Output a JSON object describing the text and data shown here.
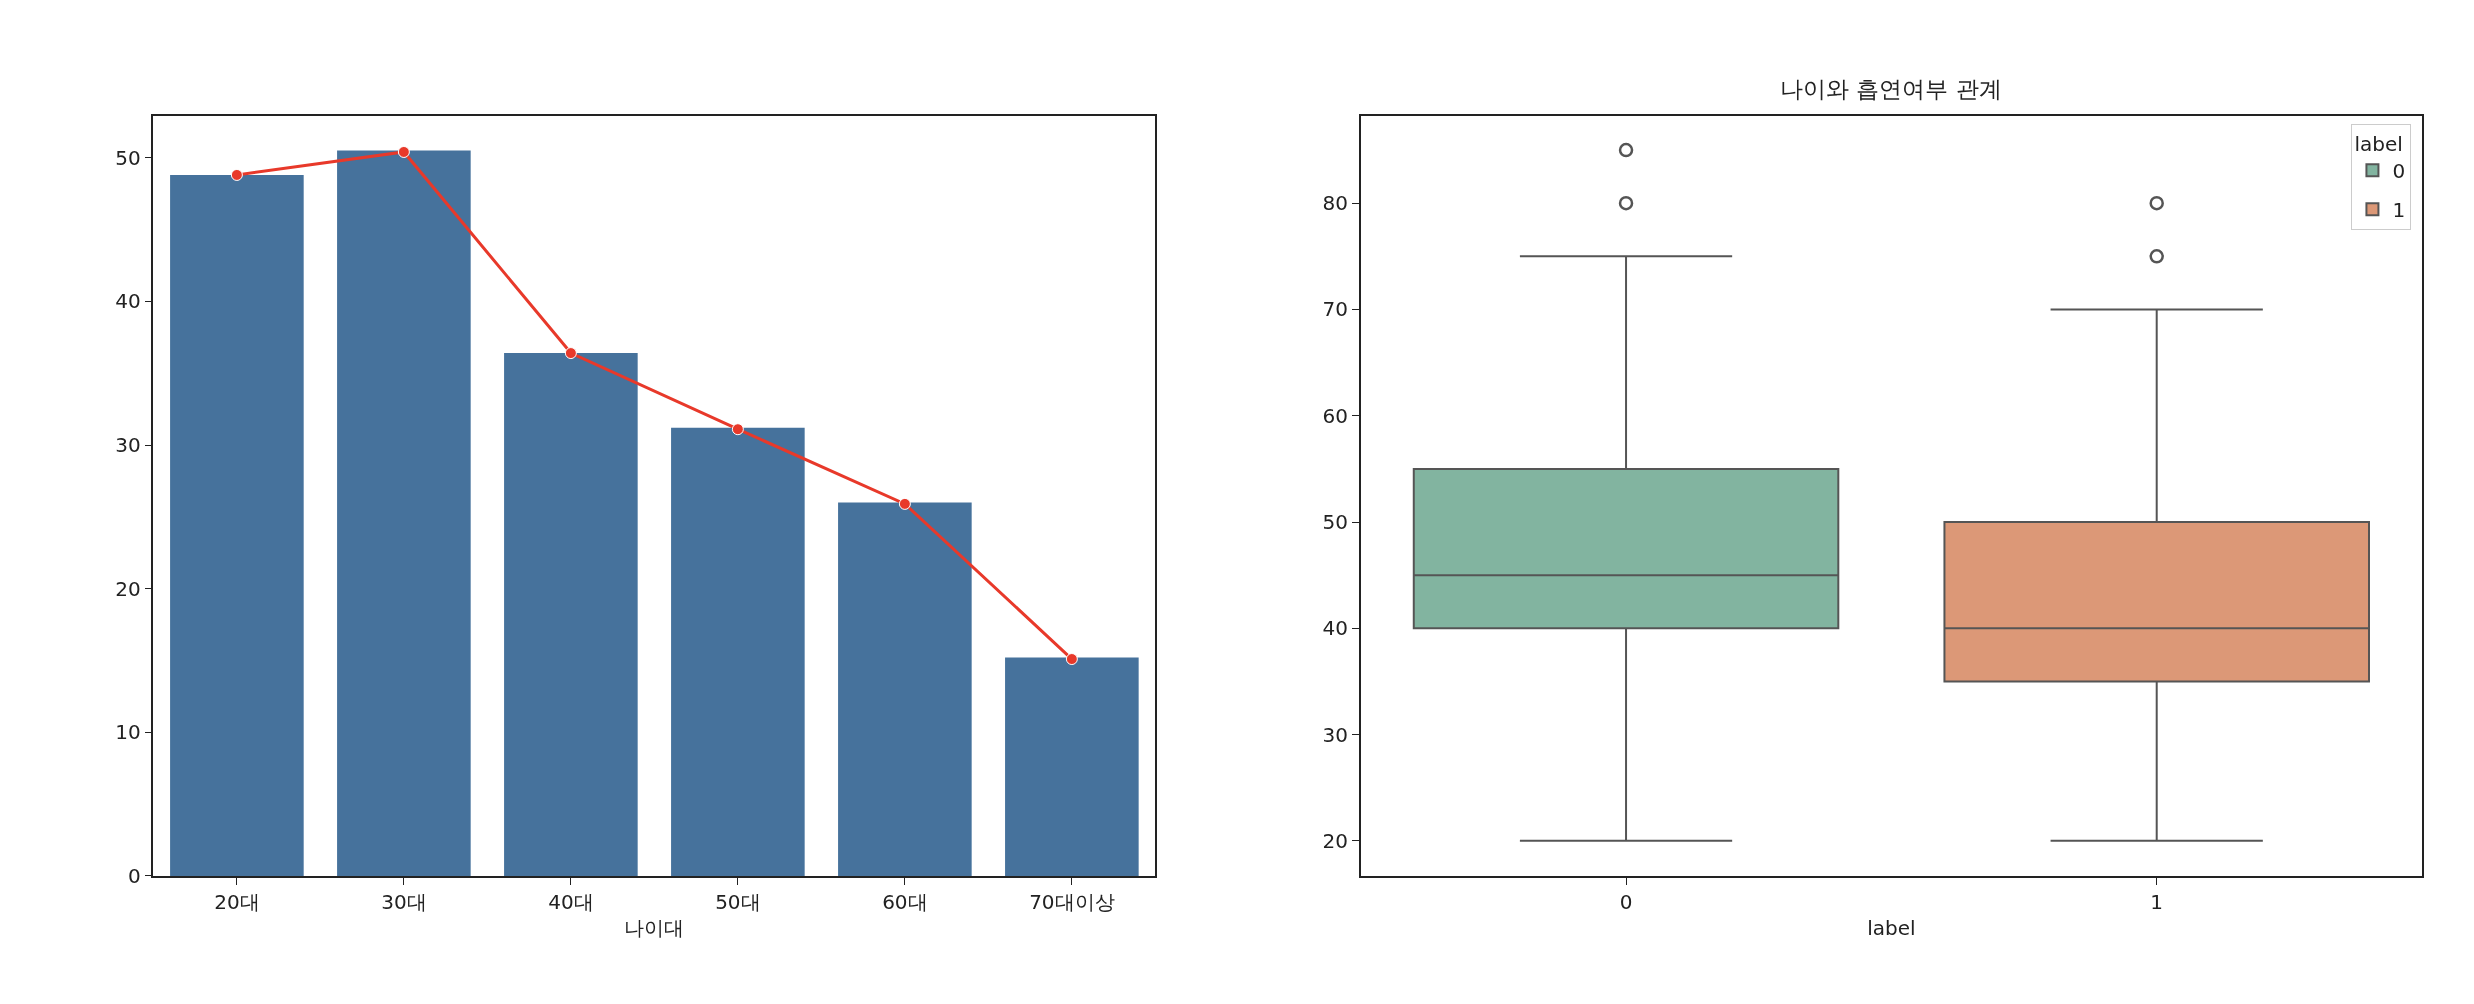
{
  "chart_data": [
    {
      "type": "bar",
      "xlabel": "나이대",
      "categories": [
        "20대",
        "30대",
        "40대",
        "50대",
        "60대",
        "70대이상"
      ],
      "series": [
        {
          "type": "bar",
          "color": "#46729c",
          "values": [
            48.8,
            50.5,
            36.4,
            31.2,
            26.0,
            15.2
          ]
        },
        {
          "type": "line",
          "color": "#e8392a",
          "marker": "circle",
          "line_style": "solid",
          "values": [
            48.8,
            50.4,
            36.4,
            31.1,
            25.9,
            15.1
          ]
        }
      ],
      "ylim": [
        0,
        52.9
      ],
      "yticks": [
        0,
        10,
        20,
        30,
        40,
        50
      ],
      "legend": false
    },
    {
      "type": "box",
      "title": "나이와 흡연여부 관계",
      "xlabel": "label",
      "categories": [
        "0",
        "1"
      ],
      "legend_title": "label",
      "legend": "top right",
      "series": [
        {
          "name": "0",
          "color": "#82b4a0",
          "x": [
            "0"
          ],
          "boxes": [
            {
              "low": 20,
              "q1": 40,
              "median": 45,
              "q3": 55,
              "high": 75,
              "outliers": [
                80,
                85
              ]
            }
          ]
        },
        {
          "name": "1",
          "color": "#dc9877",
          "x": [
            "1"
          ],
          "boxes": [
            {
              "low": 20,
              "q1": 35,
              "median": 40,
              "q3": 50,
              "high": 70,
              "outliers": [
                75,
                80
              ]
            }
          ]
        }
      ],
      "ylim": [
        16.7,
        88.2
      ],
      "yticks": [
        20,
        30,
        40,
        50,
        60,
        70,
        80
      ]
    }
  ]
}
